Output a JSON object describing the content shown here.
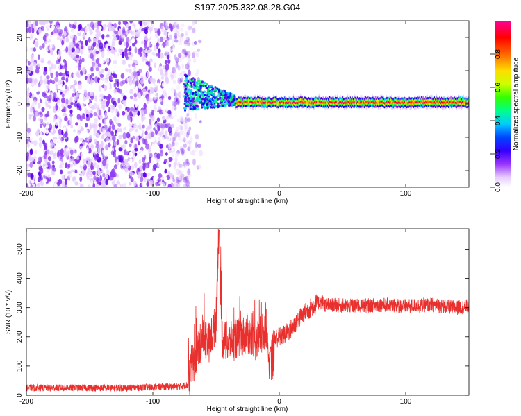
{
  "title": "S197.2025.332.08.28.G04",
  "chart_data": [
    {
      "type": "heatmap",
      "xlabel": "Height of straight line (km)",
      "ylabel": "Frequency (Hz)",
      "xlim": [
        -200,
        150
      ],
      "ylim": [
        -25,
        25
      ],
      "xticks": [
        -200,
        -100,
        0,
        100
      ],
      "yticks": [
        -20,
        -10,
        0,
        10,
        20
      ],
      "colorbar": {
        "label": "Normalized spectral amplitude",
        "range": [
          0,
          1
        ],
        "ticks": [
          0.0,
          0.2,
          0.4,
          0.6,
          0.8
        ],
        "colors": [
          "#ffffff",
          "#e6ccff",
          "#8f3cf0",
          "#5a00e8",
          "#0000ff",
          "#00ccff",
          "#00ff66",
          "#44ff00",
          "#ccff00",
          "#ffcc00",
          "#ff6600",
          "#ff0000",
          "#ff0066",
          "#ff0099"
        ]
      },
      "features": {
        "noise_region_x": [
          -200,
          -70
        ],
        "transition_x": [
          -75,
          -35
        ],
        "stable_line_x": [
          -35,
          150
        ],
        "peak_frequency_hz": 0.5
      }
    },
    {
      "type": "line",
      "xlabel": "Height of straight line (km)",
      "ylabel": "SNR (10 * v/v)",
      "xlim": [
        -200,
        150
      ],
      "ylim": [
        0,
        570
      ],
      "xticks": [
        -200,
        -100,
        0,
        100
      ],
      "yticks": [
        0,
        100,
        200,
        300,
        400,
        500
      ],
      "color": "#e8312e",
      "series": [
        {
          "x": [
            -200,
            -120,
            -80,
            -72
          ],
          "values": [
            25,
            25,
            30,
            35
          ]
        },
        {
          "x": [
            -70,
            -65,
            -60,
            -55,
            -50,
            -48,
            -45,
            -40,
            -35,
            -30,
            -25,
            -20,
            -15,
            -10
          ],
          "values": [
            80,
            150,
            200,
            180,
            250,
            560,
            190,
            180,
            190,
            200,
            210,
            180,
            200,
            230
          ]
        },
        {
          "x": [
            -8,
            -5,
            0,
            5,
            10,
            15,
            20,
            25,
            30,
            35
          ],
          "values": [
            110,
            190,
            200,
            210,
            230,
            260,
            280,
            300,
            315,
            320
          ]
        },
        {
          "x": [
            35,
            60,
            80,
            100,
            120,
            140,
            150
          ],
          "values": [
            310,
            305,
            310,
            305,
            310,
            300,
            305
          ]
        }
      ]
    }
  ]
}
